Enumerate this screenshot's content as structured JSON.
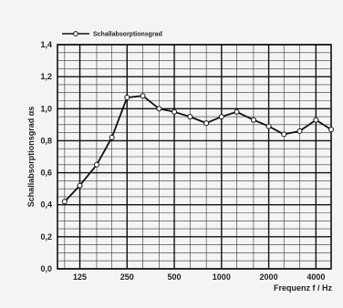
{
  "chart_data": {
    "type": "line",
    "legend": "Schallabsorptionsgrad",
    "legend_position": "top-left",
    "xlabel": "Frequenz f / Hz",
    "ylabel": "Schallabsorptionsgrad αs",
    "x_scale": "log",
    "x_ticks": [
      125,
      250,
      500,
      1000,
      2000,
      4000
    ],
    "x_tick_labels": [
      "125",
      "250",
      "500",
      "1000",
      "2000",
      "4000"
    ],
    "y_ticks": [
      0,
      0.2,
      0.4,
      0.6,
      0.8,
      1.0,
      1.2,
      1.4
    ],
    "y_tick_labels": [
      "0,0",
      "0,2",
      "0,4",
      "0,6",
      "0,8",
      "1,0",
      "1,2",
      "1,4"
    ],
    "xlim": [
      90,
      5000
    ],
    "ylim": [
      0,
      1.4
    ],
    "grid": true,
    "series": [
      {
        "name": "Schallabsorptionsgrad",
        "x": [
          100,
          125,
          160,
          200,
          250,
          315,
          400,
          500,
          630,
          800,
          1000,
          1250,
          1600,
          2000,
          2500,
          3150,
          4000,
          5000
        ],
        "y": [
          0.42,
          0.52,
          0.65,
          0.82,
          1.07,
          1.08,
          1.0,
          0.98,
          0.95,
          0.91,
          0.95,
          0.98,
          0.93,
          0.89,
          0.84,
          0.86,
          0.93,
          0.87
        ]
      }
    ]
  }
}
